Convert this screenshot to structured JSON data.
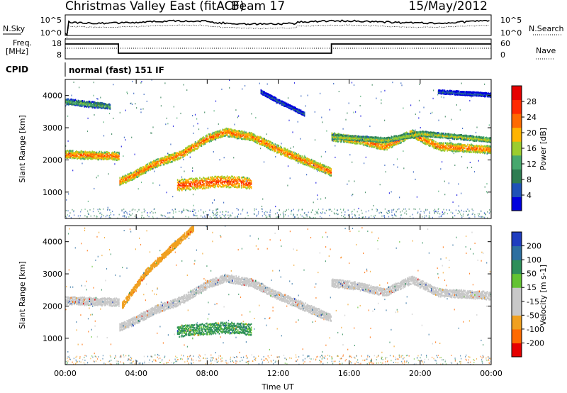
{
  "header": {
    "title": "Christmas Valley East (fitACF)",
    "beam": "Beam 17",
    "date": "15/May/2012"
  },
  "status_panels": {
    "nsky_label": "N.Sky",
    "nsearch_label": "N.Search",
    "noise_ticks": [
      "10^5",
      "10^0"
    ],
    "freq_label_1": "Freq.",
    "freq_label_2": "[MHz]",
    "freq_ticks": [
      "18",
      "8"
    ],
    "nave_label": "Nave",
    "nave_ticks": [
      "60",
      "0"
    ],
    "cpid_label": "CPID",
    "cpid_text": "normal (fast) 151 IF"
  },
  "colors": {
    "power_scale": [
      "#0000dd",
      "#1f52b8",
      "#2e7d52",
      "#47a86e",
      "#9ccc2e",
      "#ffb400",
      "#ff6a00",
      "#ff2a00",
      "#e60000"
    ],
    "velocity_scale": [
      "#1f3dbf",
      "#2d6fa0",
      "#2e8f5a",
      "#63c332",
      "#c8c8c8",
      "#c8c8c8",
      "#f0a020",
      "#ff6a00",
      "#e60000"
    ]
  },
  "chart_data": [
    {
      "type": "heatmap",
      "name": "power-panel",
      "xlabel": "",
      "ylabel": "Slant Range [km]",
      "xlim": [
        0,
        24
      ],
      "ylim": [
        180,
        4500
      ],
      "yticks": [
        "1000",
        "2000",
        "3000",
        "4000"
      ],
      "colorbar": {
        "label": "Power [dB]",
        "range": [
          0,
          32
        ],
        "ticks": [
          "4",
          "8",
          "12",
          "16",
          "20",
          "24",
          "28"
        ]
      },
      "echo_bands": [
        {
          "t": [
            0,
            3,
            3,
            3.8,
            5,
            6.5,
            8,
            9,
            10.5,
            12,
            13.5,
            15,
            15,
            16.5,
            18,
            19.5,
            21,
            24
          ],
          "range": [
            2150,
            2100,
            1300,
            1500,
            1850,
            2150,
            2650,
            2850,
            2700,
            2300,
            1950,
            1600,
            2700,
            2600,
            2400,
            2800,
            2400,
            2300
          ],
          "width_km": 250,
          "level_db": 24
        },
        {
          "t": [
            6.3,
            7.5,
            8.5,
            9.5,
            10.5
          ],
          "range": [
            1200,
            1250,
            1300,
            1300,
            1250
          ],
          "width_km": 350,
          "level_db": 26
        },
        {
          "t": [
            0,
            0.7,
            1.5,
            2.5
          ],
          "range": [
            3800,
            3750,
            3700,
            3650
          ],
          "width_km": 180,
          "level_db": 14
        },
        {
          "t": [
            15,
            16.5,
            18,
            20,
            24
          ],
          "range": [
            2700,
            2650,
            2600,
            2800,
            2600
          ],
          "width_km": 150,
          "level_db": 18
        },
        {
          "t": [
            11,
            12,
            13.5
          ],
          "range": [
            4100,
            3800,
            3400
          ],
          "width_km": 120,
          "level_db": 8
        },
        {
          "t": [
            21,
            22.5,
            24
          ],
          "range": [
            4100,
            4050,
            4000
          ],
          "width_km": 120,
          "level_db": 8
        }
      ]
    },
    {
      "type": "heatmap",
      "name": "velocity-panel",
      "xlabel": "Time UT",
      "ylabel": "Slant Range [km]",
      "xlim": [
        0,
        24
      ],
      "ylim": [
        180,
        4500
      ],
      "xticks": [
        "00:00",
        "04:00",
        "08:00",
        "12:00",
        "16:00",
        "20:00",
        "00:00"
      ],
      "yticks": [
        "1000",
        "2000",
        "3000",
        "4000"
      ],
      "colorbar": {
        "label": "Velocity [m s-1]",
        "ticks": [
          "200",
          "100",
          "50",
          "15",
          "-15",
          "-50",
          "-100",
          "-200"
        ]
      },
      "echo_bands": [
        {
          "t": [
            0,
            3,
            3,
            3.8,
            5,
            6.5,
            8,
            9,
            10.5,
            12,
            13.5,
            15,
            15,
            16.5,
            18,
            19.5,
            21,
            24
          ],
          "range": [
            2150,
            2100,
            1300,
            1500,
            1850,
            2150,
            2650,
            2850,
            2700,
            2300,
            1950,
            1600,
            2700,
            2600,
            2400,
            2800,
            2400,
            2300
          ],
          "width_km": 250,
          "velocity": 0
        },
        {
          "t": [
            6.3,
            7.5,
            8.5,
            9.5,
            10.5
          ],
          "range": [
            1200,
            1250,
            1300,
            1300,
            1250
          ],
          "width_km": 350,
          "velocity": 40
        },
        {
          "t": [
            3.2,
            4.5,
            6,
            7.2
          ],
          "range": [
            2000,
            3000,
            3800,
            4400
          ],
          "width_km": 200,
          "velocity": -60
        }
      ]
    }
  ]
}
